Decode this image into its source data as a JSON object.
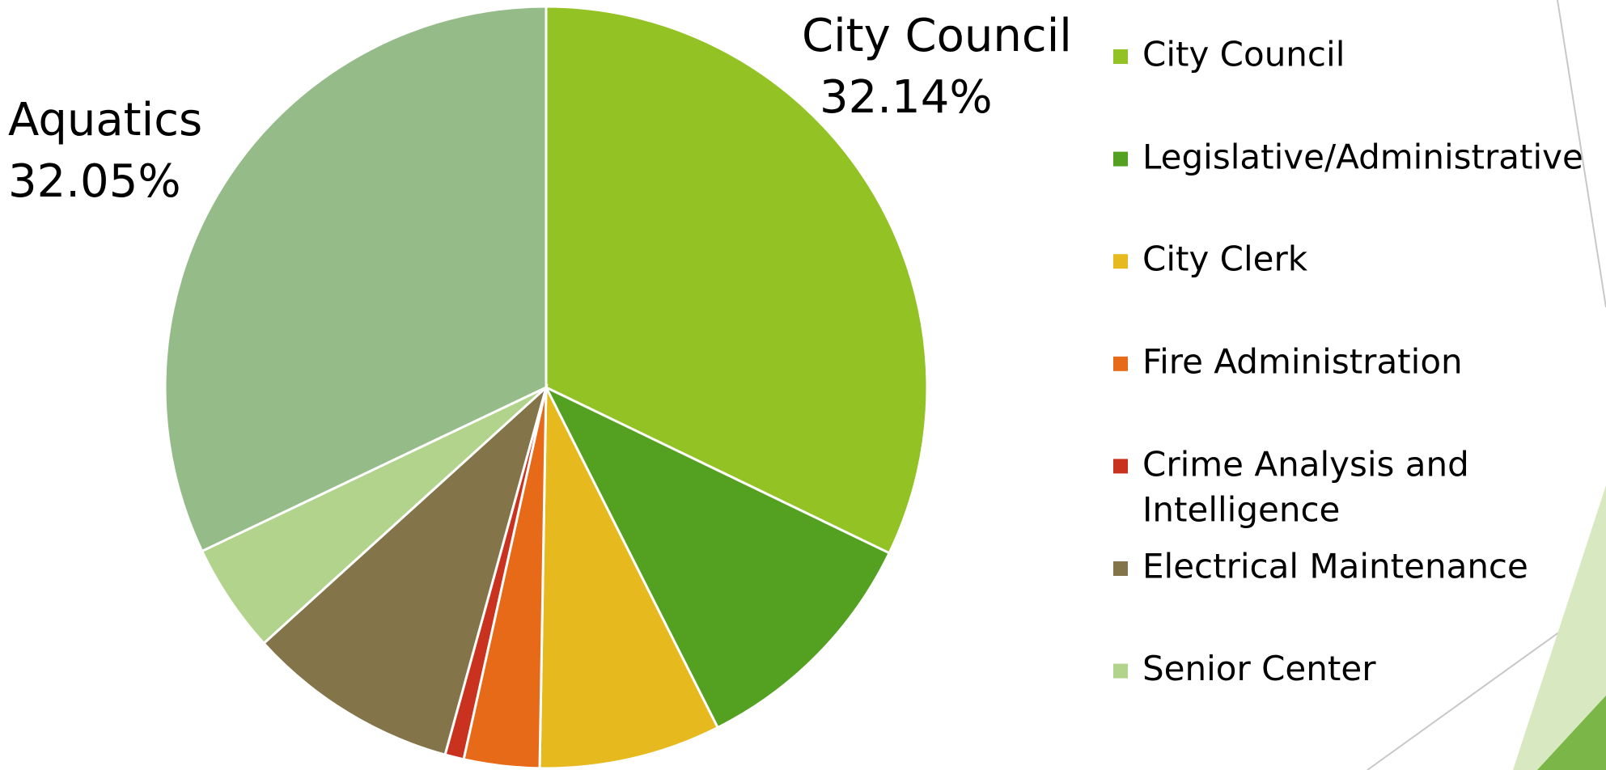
{
  "chart_data": {
    "type": "pie",
    "categories": [
      "City Council",
      "Legislative/Administrative",
      "City Clerk",
      "Fire Administration",
      "Crime Analysis and Intelligence",
      "Electrical Maintenance",
      "Senior Center",
      "Aquatics"
    ],
    "values": [
      32.14,
      10.4,
      7.7,
      3.2,
      0.8,
      9.0,
      4.65,
      32.05
    ],
    "value_labels": [
      "32.14%",
      null,
      null,
      null,
      null,
      null,
      null,
      "32.05%"
    ],
    "colors": [
      "#93c225",
      "#54a021",
      "#e6b91e",
      "#e76a19",
      "#c9321f",
      "#837549",
      "#b2d38c",
      "#95bb88"
    ],
    "legend": [
      "City Council",
      "Legislative/Administrative",
      "City Clerk",
      "Fire Administration",
      "Crime Analysis and Intelligence",
      "Electrical Maintenance",
      "Senior Center"
    ]
  }
}
